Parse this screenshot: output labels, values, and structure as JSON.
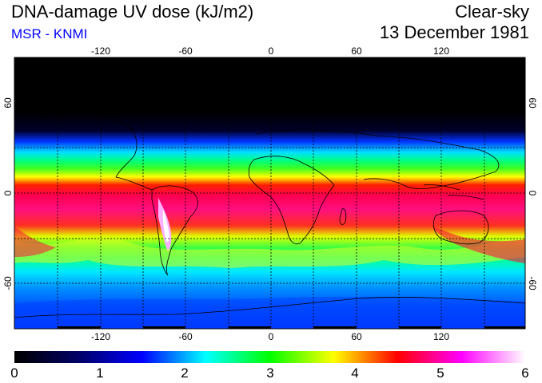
{
  "header": {
    "title": "DNA-damage UV dose (kJ/m2)",
    "credit": "MSR - KNMI",
    "sky": "Clear-sky",
    "date": "13 December 1981"
  },
  "axes": {
    "lon_ticks": [
      "-120",
      "-60",
      "0",
      "60",
      "120"
    ],
    "lat_ticks": [
      "60",
      "0",
      "-60"
    ]
  },
  "colorbar": {
    "labels": [
      "0",
      "1",
      "2",
      "3",
      "4",
      "5",
      "6"
    ],
    "min": 0,
    "max": 6,
    "stops": [
      "#000000",
      "#000066",
      "#0000ff",
      "#00ffff",
      "#00ff00",
      "#ffff00",
      "#ff0000",
      "#ff00ff",
      "#ffffff"
    ]
  },
  "colors": {
    "grid": "#000000",
    "title": "#000000",
    "credit": "#0000ff"
  }
}
